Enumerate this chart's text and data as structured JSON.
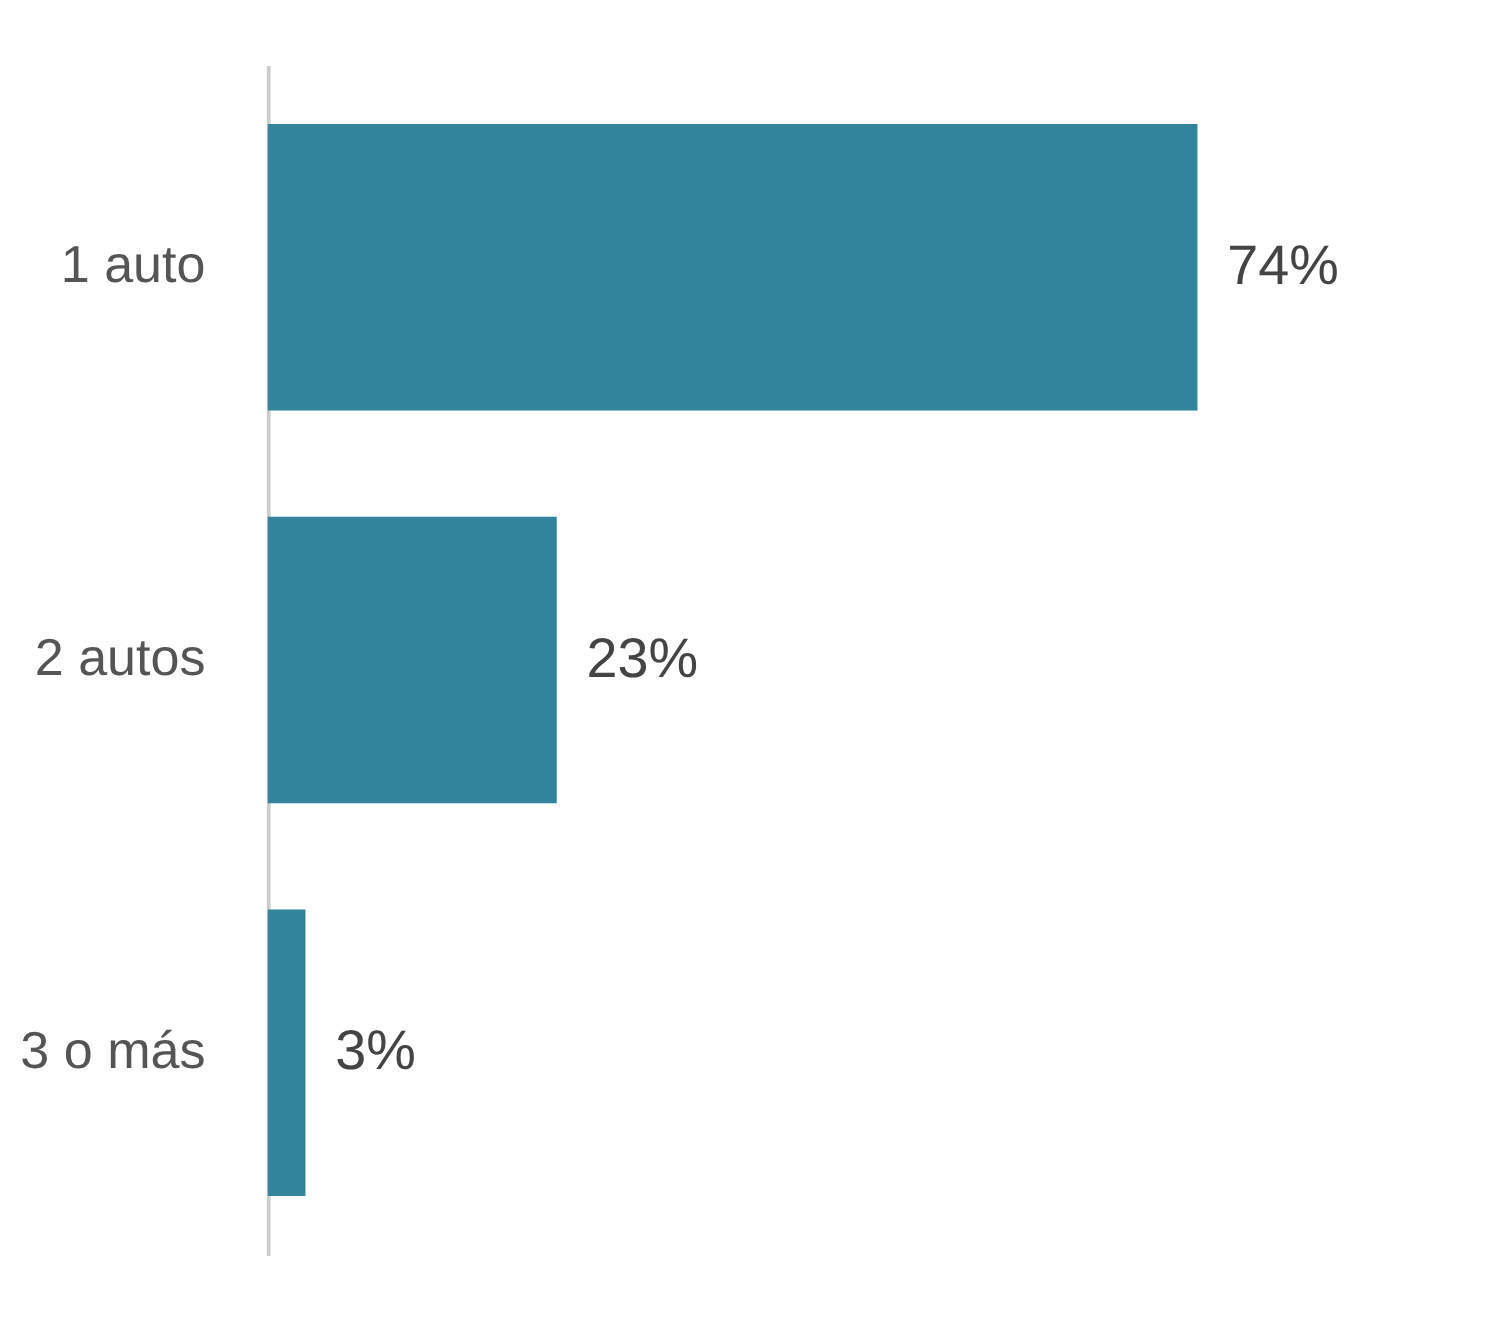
{
  "chart_data": {
    "type": "bar",
    "orientation": "horizontal",
    "categories": [
      "1 auto",
      "2 autos",
      "3 o más"
    ],
    "values": [
      74,
      23,
      3
    ],
    "value_labels": [
      "74%",
      "23%",
      "3%"
    ],
    "color": "#31849b",
    "grid": false
  }
}
